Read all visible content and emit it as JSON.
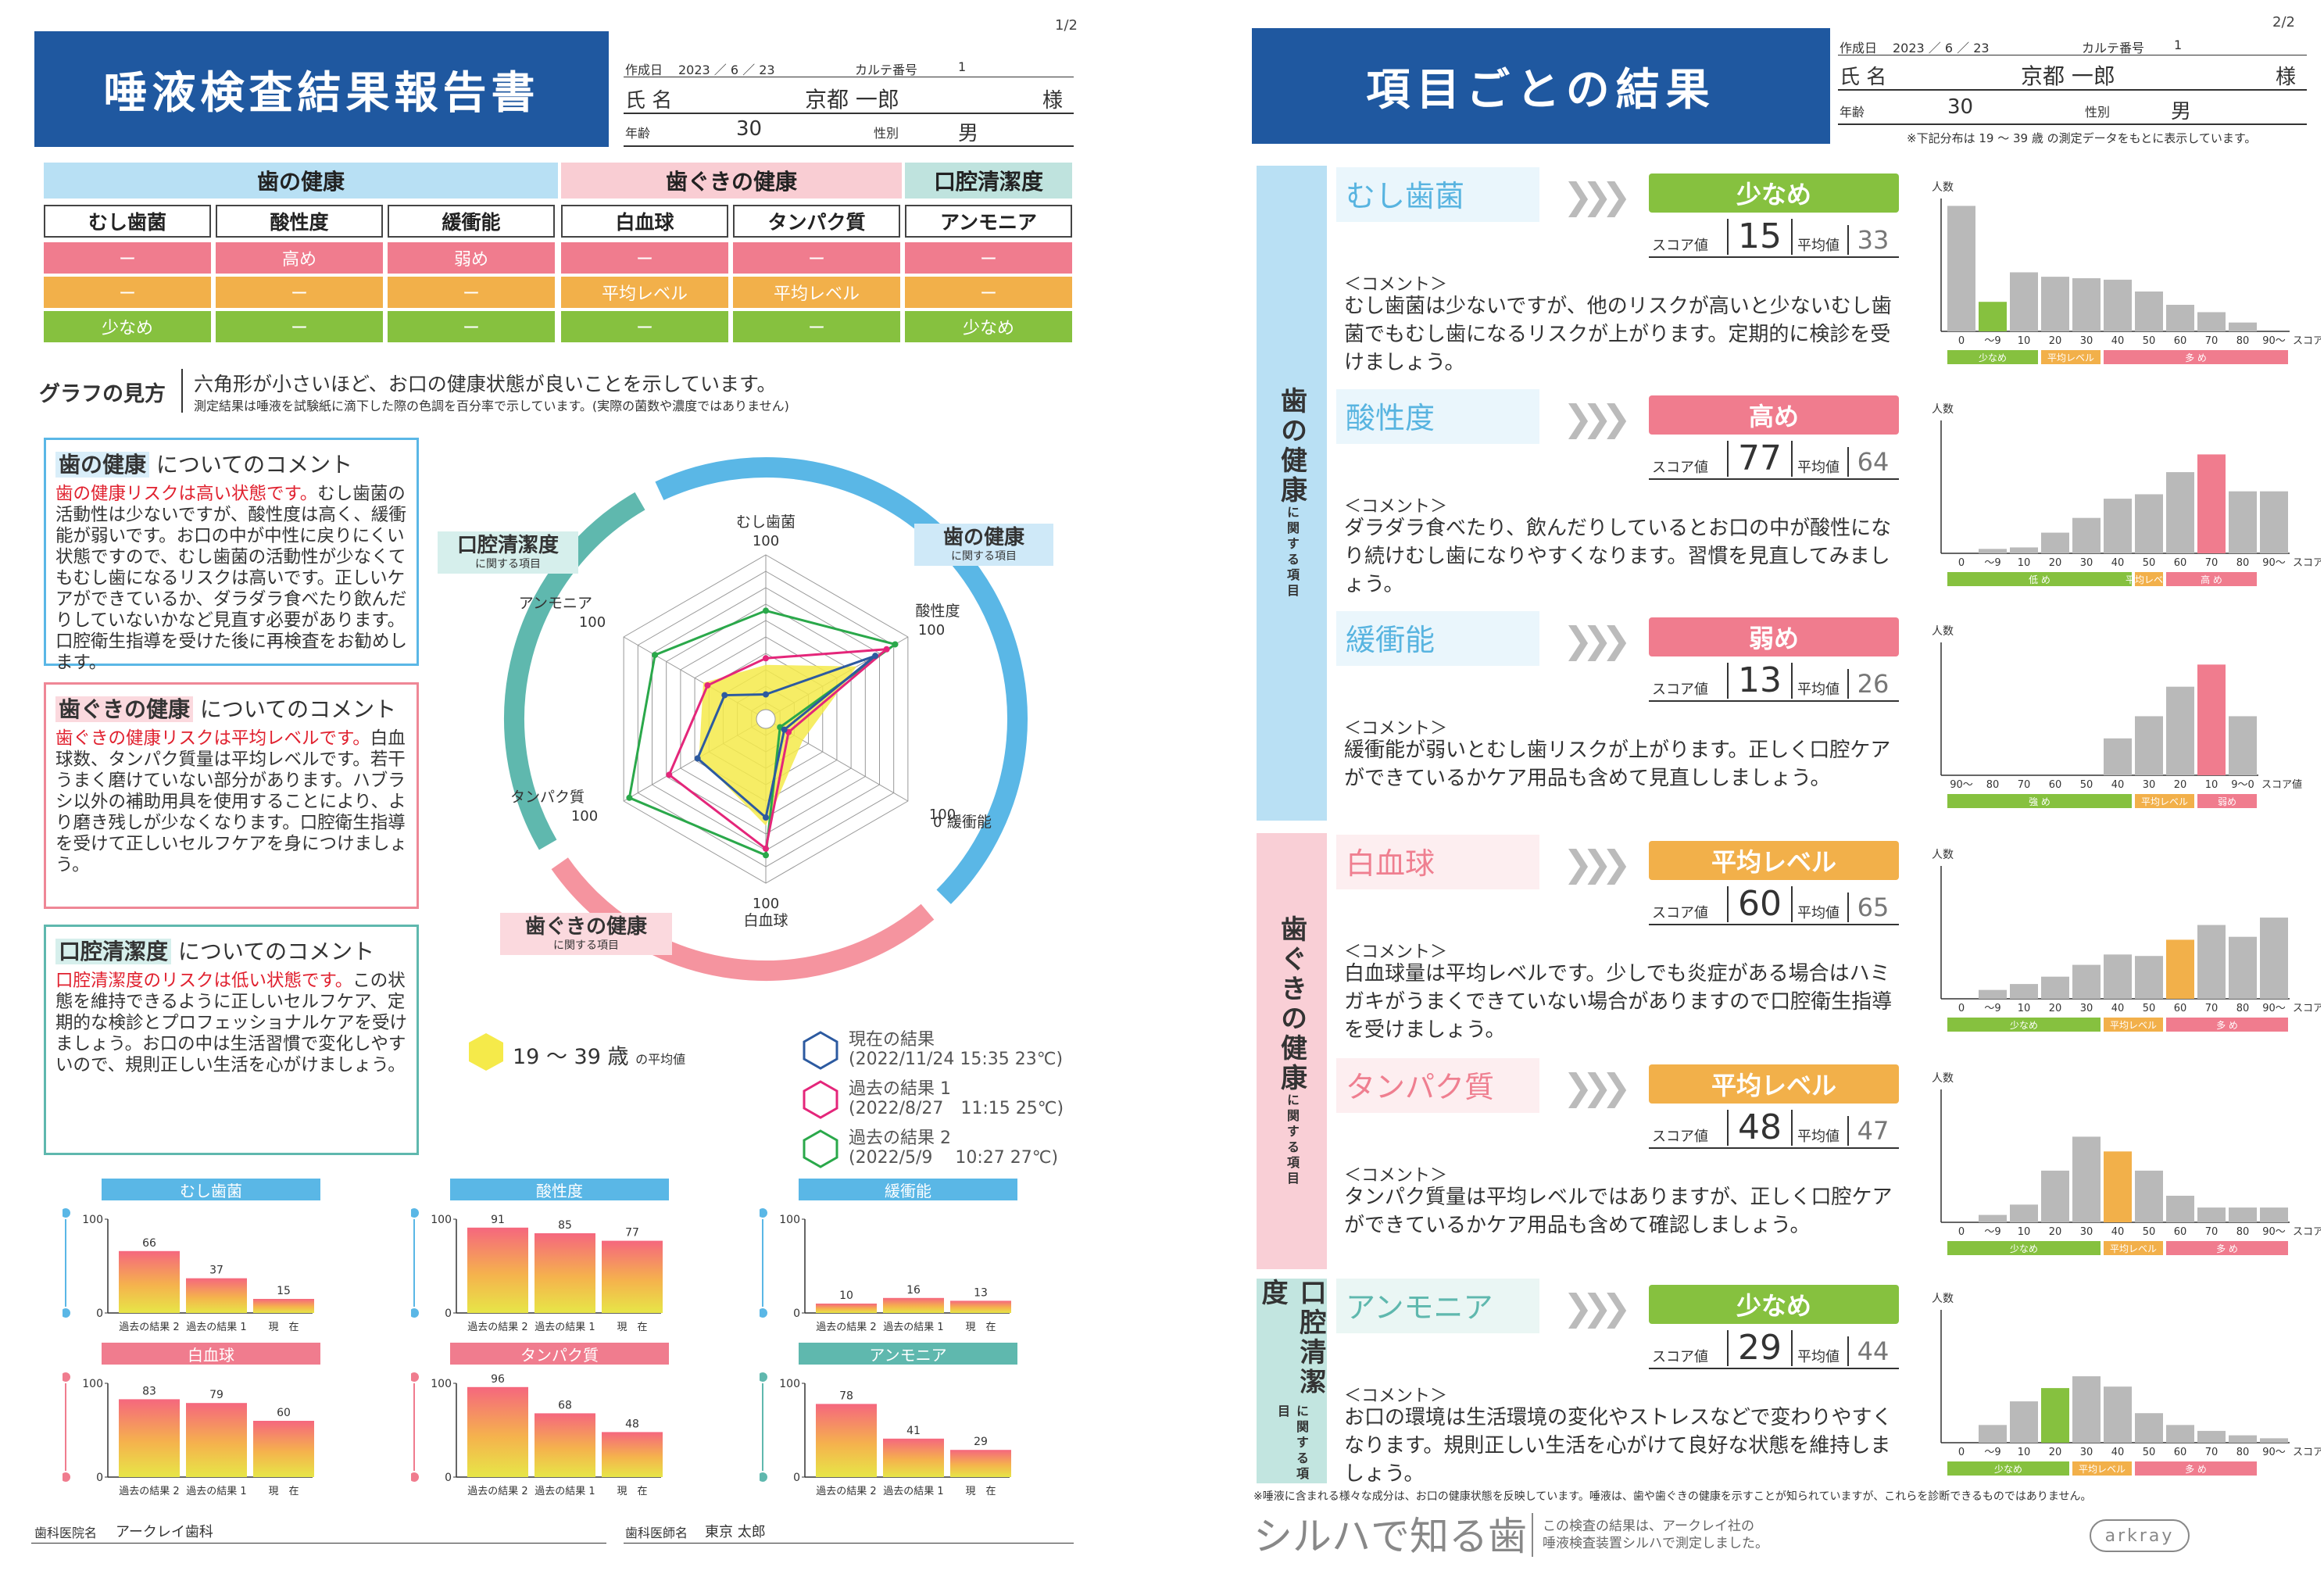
{
  "page1": {
    "page_num": "1/2",
    "title": "唾液検査結果報告書",
    "created_label": "作成日",
    "created": "2023 ／ 6 ／ 23",
    "karte_label": "カルテ番号",
    "karte": "1",
    "name_label": "氏 名",
    "name": "京都 一郎",
    "sama": "様",
    "age_label": "年齢",
    "age": "30",
    "sex_label": "性別",
    "sex": "男",
    "groups": [
      "歯の健康",
      "歯ぐきの健康",
      "口腔清潔度"
    ],
    "items": [
      "むし歯菌",
      "酸性度",
      "緩衝能",
      "白血球",
      "タンパク質",
      "アンモニア"
    ],
    "row_pink": [
      "ー",
      "高め",
      "弱め",
      "ー",
      "ー",
      "ー"
    ],
    "row_orange": [
      "ー",
      "ー",
      "ー",
      "平均レベル",
      "平均レベル",
      "ー"
    ],
    "row_green": [
      "少なめ",
      "ー",
      "ー",
      "ー",
      "ー",
      "少なめ"
    ],
    "graph_label": "グラフの見方",
    "graph_text": "六角形が小さいほど、お口の健康状態が良いことを示しています。",
    "graph_note": "測定結果は唾液を試験紙に滴下した際の色調を百分率で示しています。(実際の菌数や濃度ではありません)",
    "comment1_head": "歯の健康",
    "comment1_tail": "についてのコメント",
    "comment1_red": "歯の健康リスクは高い状態です。",
    "comment1_text": "むし歯菌の活動性は少ないですが、酸性度は高く、緩衝能が弱いです。お口の中が中性に戻りにくい状態ですので、むし歯菌の活動性が少なくてもむし歯になるリスクは高いです。正しいケアができているか、ダラダラ食べたり飲んだりしていないかなど見直す必要があります。口腔衛生指導を受けた後に再検査をお勧めします。",
    "comment2_head": "歯ぐきの健康",
    "comment2_tail": "についてのコメント",
    "comment2_red": "歯ぐきの健康リスクは平均レベルです。",
    "comment2_text": "白血球数、タンパク質量は平均レベルです。若干うまく磨けていない部分があります。ハブラシ以外の補助用具を使用することにより、より磨き残しが少なくなります。口腔衛生指導を受けて正しいセルフケアを身につけましょう。",
    "comment3_head": "口腔清潔度",
    "comment3_tail": "についてのコメント",
    "comment3_red": "口腔清潔度のリスクは低い状態です。",
    "comment3_text": "この状態を維持できるように正しいセルフケア、定期的な検診とプロフェッショナルケアを受けましょう。お口の中は生活習慣で変化しやすいので、規則正しい生活を心がけましょう。",
    "radar_groups": {
      "teeth": "歯の健康",
      "gum": "歯ぐきの健康",
      "clean": "口腔清潔度",
      "sub": "に関する項目"
    },
    "legend_avg": "19 ～ 39 歳",
    "legend_avg_sub": "の平均値",
    "legend_now": "現在の結果",
    "legend_now_date": "(2022/11/24 15:35 23℃)",
    "legend_p1": "過去の結果 1",
    "legend_p1_date": "(2022/8/27　11:15 25℃)",
    "legend_p2": "過去の結果 2",
    "legend_p2_date": "(2022/5/9　 10:27 27℃)",
    "clinic_label": "歯科医院名",
    "clinic": "アークレイ歯科",
    "doctor_label": "歯科医師名",
    "doctor": "東京 太郎",
    "mini_xlabels": [
      "過去の結果 2",
      "過去の結果 1",
      "現　在"
    ]
  },
  "page2": {
    "page_num": "2/2",
    "title": "項目ごとの結果",
    "created_label": "作成日",
    "created": "2023 ／ 6 ／ 23",
    "karte_label": "カルテ番号",
    "karte": "1",
    "name_label": "氏 名",
    "name": "京都 一郎",
    "sama": "様",
    "age_label": "年齢",
    "age": "30",
    "sex_label": "性別",
    "sex": "男",
    "note": "※下記分布は 19 ～ 39 歳 の測定データをもとに表示しています。",
    "sect1": "歯の健康",
    "sect2": "歯ぐきの健康",
    "sect3": "口腔清潔度",
    "sect_sub": "に関する項目",
    "score_label": "スコア値",
    "avg_label": "平均値",
    "comment_label": "＜コメント＞",
    "hist_ylabel": "人数",
    "footnote": "※唾液に含まれる様々な成分は、お口の健康状態を反映しています。唾液は、歯や歯ぐきの健康を示すことが知られていますが、これらを診断できるものではありません。",
    "logo_text": "シルハで知る歯",
    "logo_sub1": "この検査の結果は、アークレイ社の",
    "logo_sub2": "唾液検査装置シルハで測定しました。",
    "brand": "arkray",
    "panels": [
      {
        "title": "むし歯菌",
        "level": "少なめ",
        "score": "15",
        "avg": "33",
        "comment": "むし歯菌は少ないですが、他のリスクが高いと少ないむし歯菌でもむし歯になるリスクが上がります。定期的に検診を受けましょう。"
      },
      {
        "title": "酸性度",
        "level": "高め",
        "score": "77",
        "avg": "64",
        "comment": "ダラダラ食べたり、飲んだりしているとお口の中が酸性になり続けむし歯になりやすくなります。習慣を見直してみましょう。"
      },
      {
        "title": "緩衝能",
        "level": "弱め",
        "score": "13",
        "avg": "26",
        "comment": "緩衝能が弱いとむし歯リスクが上がります。正しく口腔ケアができているかケア用品も含めて見直ししましょう。"
      },
      {
        "title": "白血球",
        "level": "平均レベル",
        "score": "60",
        "avg": "65",
        "comment": "白血球量は平均レベルです。少しでも炎症がある場合はハミガキがうまくできていない場合がありますので口腔衛生指導を受けましょう。"
      },
      {
        "title": "タンパク質",
        "level": "平均レベル",
        "score": "48",
        "avg": "47",
        "comment": "タンパク質量は平均レベルではありますが、正しく口腔ケアができているかケア用品も含めて確認しましょう。"
      },
      {
        "title": "アンモニア",
        "level": "少なめ",
        "score": "29",
        "avg": "44",
        "comment": "お口の環境は生活環境の変化やストレスなどで変わりやすくなります。規則正しい生活を心がけて良好な状態を維持しましょう。"
      }
    ]
  },
  "colors": {
    "blue": "#1f58a0",
    "sky": "#5ab7e6",
    "pink": "#f07c8e",
    "orange": "#f2b04a",
    "green": "#86c13f",
    "teal": "#5fb8ae",
    "gray": "#b9b9b9"
  },
  "chart_data": [
    {
      "type": "radar",
      "axes": [
        "むし歯菌",
        "酸性度",
        "緩衝能",
        "白血球",
        "タンパク質",
        "アンモニア"
      ],
      "max": 100,
      "series": [
        {
          "name": "現在の結果",
          "values": [
            15,
            77,
            13,
            60,
            48,
            29
          ]
        },
        {
          "name": "過去の結果 1",
          "values": [
            37,
            85,
            16,
            79,
            68,
            41
          ]
        },
        {
          "name": "過去の結果 2",
          "values": [
            66,
            91,
            10,
            83,
            96,
            78
          ]
        },
        {
          "name": "19 ～ 39 歳 の平均値",
          "values": [
            33,
            64,
            26,
            65,
            47,
            44
          ]
        }
      ]
    },
    {
      "type": "bar",
      "title": "むし歯菌",
      "categories": [
        "過去の結果 2",
        "過去の結果 1",
        "現　在"
      ],
      "values": [
        66,
        37,
        15
      ],
      "ylim": [
        0,
        100
      ]
    },
    {
      "type": "bar",
      "title": "酸性度",
      "categories": [
        "過去の結果 2",
        "過去の結果 1",
        "現　在"
      ],
      "values": [
        91,
        85,
        77
      ],
      "ylim": [
        0,
        100
      ]
    },
    {
      "type": "bar",
      "title": "緩衝能",
      "categories": [
        "過去の結果 2",
        "過去の結果 1",
        "現　在"
      ],
      "values": [
        10,
        16,
        13
      ],
      "ylim": [
        0,
        100
      ]
    },
    {
      "type": "bar",
      "title": "白血球",
      "categories": [
        "過去の結果 2",
        "過去の結果 1",
        "現　在"
      ],
      "values": [
        83,
        79,
        60
      ],
      "ylim": [
        0,
        100
      ]
    },
    {
      "type": "bar",
      "title": "タンパク質",
      "categories": [
        "過去の結果 2",
        "過去の結果 1",
        "現　在"
      ],
      "values": [
        96,
        68,
        48
      ],
      "ylim": [
        0,
        100
      ]
    },
    {
      "type": "bar",
      "title": "アンモニア",
      "categories": [
        "過去の結果 2",
        "過去の結果 1",
        "現　在"
      ],
      "values": [
        78,
        41,
        29
      ],
      "ylim": [
        0,
        100
      ]
    },
    {
      "type": "bar",
      "title": "むし歯菌 分布",
      "ylabel": "人数",
      "categories": [
        "0",
        "～9",
        "10",
        "20",
        "30",
        "40",
        "50",
        "60",
        "70",
        "80",
        "90～"
      ],
      "x_suffix": "スコア値",
      "values": [
        85,
        20,
        40,
        37,
        36,
        35,
        27,
        18,
        13,
        6,
        0
      ],
      "highlight": 1,
      "zones": [
        {
          "label": "少なめ",
          "color": "#86c13f",
          "from": 0,
          "to": 2
        },
        {
          "label": "平均レベル",
          "color": "#f2b04a",
          "from": 3,
          "to": 4
        },
        {
          "label": "多 め",
          "color": "#f07c8e",
          "from": 5,
          "to": 10
        }
      ]
    },
    {
      "type": "bar",
      "title": "酸性度 分布",
      "ylabel": "人数",
      "categories": [
        "0",
        "～9",
        "10",
        "20",
        "30",
        "40",
        "50",
        "60",
        "70",
        "80",
        "90～"
      ],
      "x_suffix": "スコア値",
      "values": [
        0,
        3,
        4,
        14,
        24,
        37,
        40,
        55,
        67,
        42,
        42
      ],
      "highlight": 8,
      "zones": [
        {
          "label": "低 め",
          "color": "#86c13f",
          "from": 0,
          "to": 5
        },
        {
          "label": "平均レベル",
          "color": "#f2b04a",
          "from": 6,
          "to": 6
        },
        {
          "label": "高 め",
          "color": "#f07c8e",
          "from": 7,
          "to": 9
        }
      ]
    },
    {
      "type": "bar",
      "title": "緩衝能 分布",
      "ylabel": "人数",
      "categories": [
        "90～",
        "80",
        "70",
        "60",
        "50",
        "40",
        "30",
        "20",
        "10",
        "9～0"
      ],
      "x_suffix": "スコア値",
      "values": [
        0,
        0,
        0,
        0,
        0,
        25,
        40,
        60,
        75,
        40
      ],
      "highlight": 8,
      "zones": [
        {
          "label": "強 め",
          "color": "#86c13f",
          "from": 0,
          "to": 5
        },
        {
          "label": "平均レベル",
          "color": "#f2b04a",
          "from": 6,
          "to": 7
        },
        {
          "label": "弱め",
          "color": "#f07c8e",
          "from": 8,
          "to": 9
        }
      ]
    },
    {
      "type": "bar",
      "title": "白血球 分布",
      "ylabel": "人数",
      "categories": [
        "0",
        "～9",
        "10",
        "20",
        "30",
        "40",
        "50",
        "60",
        "70",
        "80",
        "90～"
      ],
      "x_suffix": "スコア値",
      "values": [
        0,
        6,
        10,
        15,
        23,
        30,
        29,
        40,
        50,
        42,
        55
      ],
      "highlight": 7,
      "zones": [
        {
          "label": "少なめ",
          "color": "#86c13f",
          "from": 0,
          "to": 4
        },
        {
          "label": "平均レベル",
          "color": "#f2b04a",
          "from": 5,
          "to": 6
        },
        {
          "label": "多 め",
          "color": "#f07c8e",
          "from": 7,
          "to": 10
        }
      ]
    },
    {
      "type": "bar",
      "title": "タンパク質 分布",
      "ylabel": "人数",
      "categories": [
        "0",
        "～9",
        "10",
        "20",
        "30",
        "40",
        "50",
        "60",
        "70",
        "80",
        "90～"
      ],
      "x_suffix": "スコア値",
      "values": [
        0,
        5,
        12,
        35,
        58,
        48,
        35,
        18,
        10,
        10,
        10
      ],
      "highlight": 5,
      "zones": [
        {
          "label": "少なめ",
          "color": "#86c13f",
          "from": 0,
          "to": 4
        },
        {
          "label": "平均レベル",
          "color": "#f2b04a",
          "from": 5,
          "to": 6
        },
        {
          "label": "多 め",
          "color": "#f07c8e",
          "from": 7,
          "to": 10
        }
      ]
    },
    {
      "type": "bar",
      "title": "アンモニア 分布",
      "ylabel": "人数",
      "categories": [
        "0",
        "～9",
        "10",
        "20",
        "30",
        "40",
        "50",
        "60",
        "70",
        "80",
        "90～"
      ],
      "x_suffix": "スコア値",
      "values": [
        0,
        12,
        28,
        37,
        45,
        38,
        20,
        12,
        8,
        5,
        3
      ],
      "highlight": 3,
      "zones": [
        {
          "label": "少なめ",
          "color": "#86c13f",
          "from": 0,
          "to": 3
        },
        {
          "label": "平均レベル",
          "color": "#f2b04a",
          "from": 4,
          "to": 5
        },
        {
          "label": "多 め",
          "color": "#f07c8e",
          "from": 6,
          "to": 9
        }
      ]
    }
  ]
}
